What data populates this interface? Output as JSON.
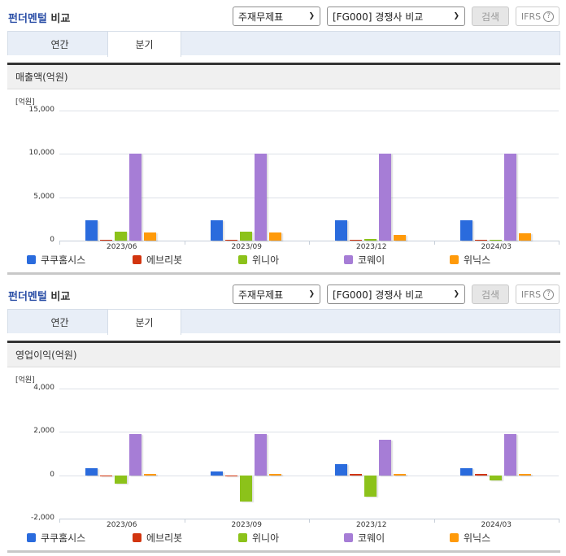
{
  "panels": [
    {
      "header": {
        "title_part1": "펀더멘털",
        "title_part2": " 비교",
        "select1": "주재무제표",
        "select2": "[FG000] 경쟁사 비교",
        "search_label": "검색",
        "ifrs_label": "IFRS",
        "help_icon": "?"
      },
      "tabs": [
        {
          "label": "연간",
          "active": false
        },
        {
          "label": "분기",
          "active": true
        }
      ],
      "metric_title": "매출액(억원)",
      "unit_label": "[억원]"
    },
    {
      "header": {
        "title_part1": "펀더멘털",
        "title_part2": " 비교",
        "select1": "주재무제표",
        "select2": "[FG000] 경쟁사 비교",
        "search_label": "검색",
        "ifrs_label": "IFRS",
        "help_icon": "?"
      },
      "tabs": [
        {
          "label": "연간",
          "active": false
        },
        {
          "label": "분기",
          "active": true
        }
      ],
      "metric_title": "영업이익(억원)",
      "unit_label": "[억원]"
    }
  ],
  "legend": [
    {
      "name": "쿠쿠홈시스",
      "color": "#2a6bdd"
    },
    {
      "name": "에브리봇",
      "color": "#d2350f"
    },
    {
      "name": "위니아",
      "color": "#8cc21a"
    },
    {
      "name": "코웨이",
      "color": "#a67dd6"
    },
    {
      "name": "위닉스",
      "color": "#ff9a0a"
    }
  ],
  "chart_data": [
    {
      "type": "bar",
      "title": "매출액(억원)",
      "xlabel": "",
      "ylabel": "[억원]",
      "ylim": [
        0,
        15000
      ],
      "yticks": [
        "15,000",
        "10,000",
        "5,000",
        "0"
      ],
      "grid": true,
      "legend_position": "bottom",
      "categories": [
        "2023/06",
        "2023/09",
        "2023/12",
        "2024/03"
      ],
      "series": [
        {
          "name": "쿠쿠홈시스",
          "values": [
            2340,
            2340,
            2340,
            2340
          ]
        },
        {
          "name": "에브리봇",
          "values": [
            30,
            30,
            30,
            30
          ]
        },
        {
          "name": "위니아",
          "values": [
            1030,
            1030,
            170,
            50
          ]
        },
        {
          "name": "코웨이",
          "values": [
            10000,
            10000,
            10000,
            10000
          ]
        },
        {
          "name": "위닉스",
          "values": [
            940,
            940,
            700,
            880
          ]
        }
      ]
    },
    {
      "type": "bar",
      "title": "영업이익(억원)",
      "xlabel": "",
      "ylabel": "[억원]",
      "ylim": [
        -2000,
        4000
      ],
      "yticks": [
        "4,000",
        "2,000",
        "0",
        "-2,000"
      ],
      "grid": true,
      "legend_position": "bottom",
      "categories": [
        "2023/06",
        "2023/09",
        "2023/12",
        "2024/03"
      ],
      "series": [
        {
          "name": "쿠쿠홈시스",
          "values": [
            340,
            190,
            520,
            340
          ]
        },
        {
          "name": "에브리봇",
          "values": [
            -30,
            -40,
            0,
            0
          ]
        },
        {
          "name": "위니아",
          "values": [
            -400,
            -1230,
            -980,
            -230
          ]
        },
        {
          "name": "코웨이",
          "values": [
            1900,
            1900,
            1650,
            1900
          ]
        },
        {
          "name": "위닉스",
          "values": [
            30,
            70,
            40,
            40
          ]
        }
      ]
    }
  ]
}
